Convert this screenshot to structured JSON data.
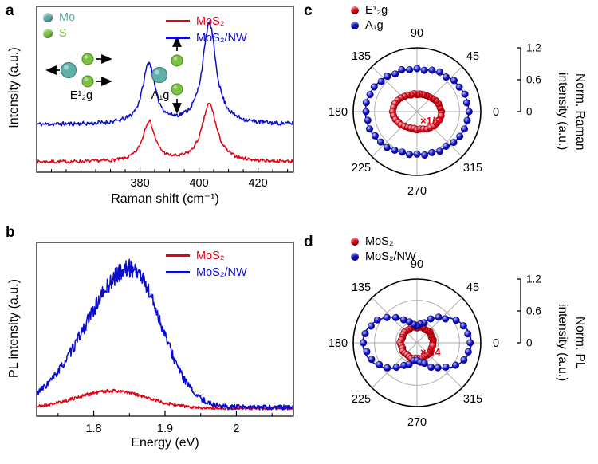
{
  "panels": {
    "a": {
      "label": "a",
      "xlabel": "Raman shift (cm⁻¹)",
      "ylabel": "Intensity (a.u.)",
      "legend": [
        {
          "label": "MoS₂",
          "color": "#e60012"
        },
        {
          "label": "MoS₂/NW",
          "color": "#0b0bcc"
        }
      ],
      "atom_legend": [
        {
          "label": "Mo",
          "color": "#5fb0a8"
        },
        {
          "label": "S",
          "color": "#7cc142"
        }
      ],
      "mode_labels": {
        "e2g": "E¹₂g",
        "a1g": "A₁g"
      }
    },
    "b": {
      "label": "b",
      "xlabel": "Energy (eV)",
      "ylabel": "PL intensity (a.u.)",
      "legend": [
        {
          "label": "MoS₂",
          "color": "#e60012"
        },
        {
          "label": "MoS₂/NW",
          "color": "#0b0bcc"
        }
      ]
    },
    "c": {
      "label": "c",
      "legend": [
        {
          "label": "E¹₂g",
          "color": "#e60012"
        },
        {
          "label": "A₁g",
          "color": "#0b0bcc"
        }
      ],
      "axis_title_line1": "Norm. Raman",
      "axis_title_line2": "intensity (a.u.)",
      "note": "×1/2"
    },
    "d": {
      "label": "d",
      "legend": [
        {
          "label": "MoS₂",
          "color": "#e60012"
        },
        {
          "label": "MoS₂/NW",
          "color": "#0b0bcc"
        }
      ],
      "axis_title_line1": "Norm. PL",
      "axis_title_line2": "intensity (a.u.)",
      "note": "×1/4"
    }
  },
  "chart_data": [
    {
      "panel": "a",
      "type": "line",
      "xlabel": "Raman shift (cm⁻¹)",
      "ylabel": "Intensity (a.u.)",
      "xlim": [
        345,
        432
      ],
      "xticks": [
        380,
        400,
        420
      ],
      "xtick_labels": [
        "380",
        "400",
        "420"
      ],
      "minor_step": 5,
      "ylim": [
        0,
        1.15
      ],
      "series": [
        {
          "name": "MoS₂",
          "color": "#e60012",
          "baseline": 0.07,
          "noise": 0.011,
          "noise_scale": 0.5,
          "seed": 7,
          "peaks": [
            {
              "center": 383,
              "amp": 0.28,
              "fwhm": 5
            },
            {
              "center": 403.5,
              "amp": 0.4,
              "fwhm": 6
            }
          ]
        },
        {
          "name": "MoS₂/NW",
          "color": "#0b0bcc",
          "baseline": 0.33,
          "noise": 0.013,
          "noise_scale": 0.5,
          "seed": 11,
          "peaks": [
            {
              "center": 383,
              "amp": 0.42,
              "fwhm": 5
            },
            {
              "center": 403.5,
              "amp": 0.7,
              "fwhm": 5.5
            }
          ]
        }
      ]
    },
    {
      "panel": "b",
      "type": "line",
      "xlabel": "Energy (eV)",
      "ylabel": "PL intensity (a.u.)",
      "xlim": [
        1.72,
        2.08
      ],
      "xticks": [
        1.8,
        1.9,
        2.0
      ],
      "xtick_labels": [
        "1.8",
        "1.9",
        "2"
      ],
      "minor_step": 0.05,
      "ylim": [
        0,
        1.0
      ],
      "series": [
        {
          "name": "MoS₂",
          "color": "#e60012",
          "baseline": 0.045,
          "noise": 0.008,
          "noise_scale": 2,
          "seed": 21,
          "gauss": [
            {
              "center": 1.825,
              "amp": 0.1,
              "sl": 0.05,
              "sr": 0.05
            }
          ]
        },
        {
          "name": "MoS₂/NW",
          "color": "#0b0bcc",
          "baseline": 0.05,
          "noise": 0.012,
          "noise_scale": 4,
          "seed": 33,
          "gauss": [
            {
              "center": 1.852,
              "amp": 0.8,
              "sl": 0.062,
              "sr": 0.042
            }
          ]
        }
      ]
    },
    {
      "panel": "c",
      "type": "polar",
      "rlim": [
        0,
        1.2
      ],
      "rticks": [
        0.4,
        0.8,
        1.2
      ],
      "scale_ticks": [
        "0",
        "0.6",
        "1.2"
      ],
      "angle_labels": [
        0,
        45,
        90,
        135,
        180,
        225,
        270,
        315
      ],
      "angle_step_deg": 10,
      "note": "×1/2",
      "series": [
        {
          "name": "E¹₂g",
          "color": "#e60012",
          "fit": {
            "a": 0.33,
            "b": 0.12
          },
          "r": [
            0.46,
            0.44,
            0.43,
            0.41,
            0.38,
            0.36,
            0.35,
            0.34,
            0.33,
            0.32,
            0.34,
            0.33,
            0.36,
            0.37,
            0.4,
            0.42,
            0.44,
            0.45,
            0.46,
            0.45,
            0.43,
            0.4,
            0.39,
            0.36,
            0.34,
            0.33,
            0.32,
            0.34,
            0.33,
            0.35,
            0.38,
            0.39,
            0.42,
            0.43,
            0.45,
            0.46
          ]
        },
        {
          "name": "A₁g",
          "color": "#0b0bcc",
          "fit": {
            "a": 0.8,
            "b": 0.17
          },
          "r": [
            0.98,
            0.95,
            0.96,
            0.92,
            0.91,
            0.85,
            0.86,
            0.83,
            0.79,
            0.81,
            0.8,
            0.84,
            0.82,
            0.87,
            0.88,
            0.93,
            0.94,
            0.97,
            0.96,
            0.94,
            0.95,
            0.91,
            0.89,
            0.88,
            0.84,
            0.81,
            0.82,
            0.8,
            0.83,
            0.82,
            0.86,
            0.85,
            0.9,
            0.93,
            0.95,
            0.96
          ]
        }
      ]
    },
    {
      "panel": "d",
      "type": "polar",
      "rlim": [
        0,
        1.2
      ],
      "rticks": [
        0.4,
        0.8,
        1.2
      ],
      "scale_ticks": [
        "0",
        "0.6",
        "1.2"
      ],
      "angle_labels": [
        0,
        45,
        90,
        135,
        180,
        225,
        270,
        315
      ],
      "angle_step_deg": 10,
      "note": "×1/4",
      "series": [
        {
          "name": "MoS₂",
          "color": "#e60012",
          "fit": {
            "a": 0.3,
            "b": 0
          },
          "r": [
            0.3,
            0.31,
            0.29,
            0.3,
            0.32,
            0.3,
            0.29,
            0.31,
            0.3,
            0.28,
            0.3,
            0.31,
            0.29,
            0.3,
            0.31,
            0.3,
            0.29,
            0.3,
            0.32,
            0.3,
            0.29,
            0.31,
            0.3,
            0.29,
            0.3,
            0.31,
            0.3,
            0.29,
            0.3,
            0.31,
            0.29,
            0.3,
            0.31,
            0.3,
            0.29,
            0.3
          ]
        },
        {
          "name": "MoS₂/NW",
          "color": "#0b0bcc",
          "fit": {
            "a": 0.34,
            "b": 0.68
          },
          "r": [
            1.0,
            0.97,
            0.93,
            0.85,
            0.7,
            0.63,
            0.52,
            0.4,
            0.36,
            0.32,
            0.35,
            0.42,
            0.5,
            0.62,
            0.74,
            0.86,
            0.92,
            0.99,
            1.01,
            0.96,
            0.91,
            0.82,
            0.73,
            0.6,
            0.49,
            0.43,
            0.34,
            0.33,
            0.37,
            0.41,
            0.53,
            0.61,
            0.71,
            0.84,
            0.94,
            0.98
          ]
        }
      ]
    }
  ]
}
